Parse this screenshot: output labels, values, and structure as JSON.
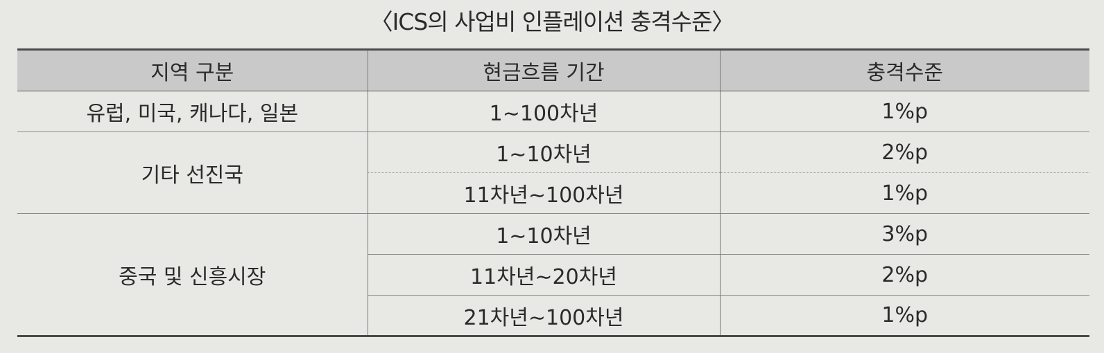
{
  "caption": "〈ICS의 사업비 인플레이션 충격수준〉",
  "table": {
    "headers": [
      "지역 구분",
      "현금흐름 기간",
      "충격수준"
    ],
    "groups": [
      {
        "region": "유럽, 미국, 캐나다, 일본",
        "rows": [
          {
            "period": "1∼100차년",
            "shock": "1%p"
          }
        ]
      },
      {
        "region": "기타 선진국",
        "rows": [
          {
            "period": "1∼10차년",
            "shock": "2%p"
          },
          {
            "period": "11차년∼100차년",
            "shock": "1%p"
          }
        ]
      },
      {
        "region": "중국 및 신흥시장",
        "rows": [
          {
            "period": "1∼10차년",
            "shock": "3%p"
          },
          {
            "period": "11차년∼20차년",
            "shock": "2%p"
          },
          {
            "period": "21차년∼100차년",
            "shock": "1%p"
          }
        ]
      }
    ]
  }
}
